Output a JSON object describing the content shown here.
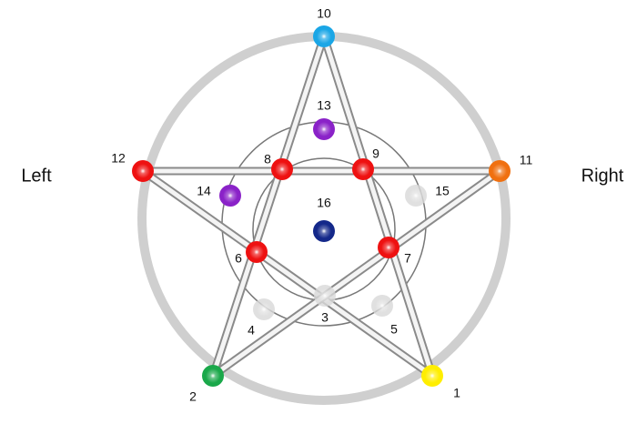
{
  "side_labels": {
    "left": "Left",
    "right": "Right"
  },
  "nodes": [
    {
      "label": "1",
      "color": "#ffee00"
    },
    {
      "label": "2",
      "color": "#1aa84a"
    },
    {
      "label": "3",
      "color": "#d8d8d8"
    },
    {
      "label": "4",
      "color": "#d8d8d8"
    },
    {
      "label": "5",
      "color": "#d8d8d8"
    },
    {
      "label": "6",
      "color": "#ee1111"
    },
    {
      "label": "7",
      "color": "#ee1111"
    },
    {
      "label": "8",
      "color": "#ee1111"
    },
    {
      "label": "9",
      "color": "#ee1111"
    },
    {
      "label": "10",
      "color": "#1aa6e6"
    },
    {
      "label": "11",
      "color": "#f07010"
    },
    {
      "label": "12",
      "color": "#ee1111"
    },
    {
      "label": "13",
      "color": "#8a22c8"
    },
    {
      "label": "14",
      "color": "#8a22c8"
    },
    {
      "label": "15",
      "color": "#d8d8d8"
    },
    {
      "label": "16",
      "color": "#14288a"
    }
  ]
}
